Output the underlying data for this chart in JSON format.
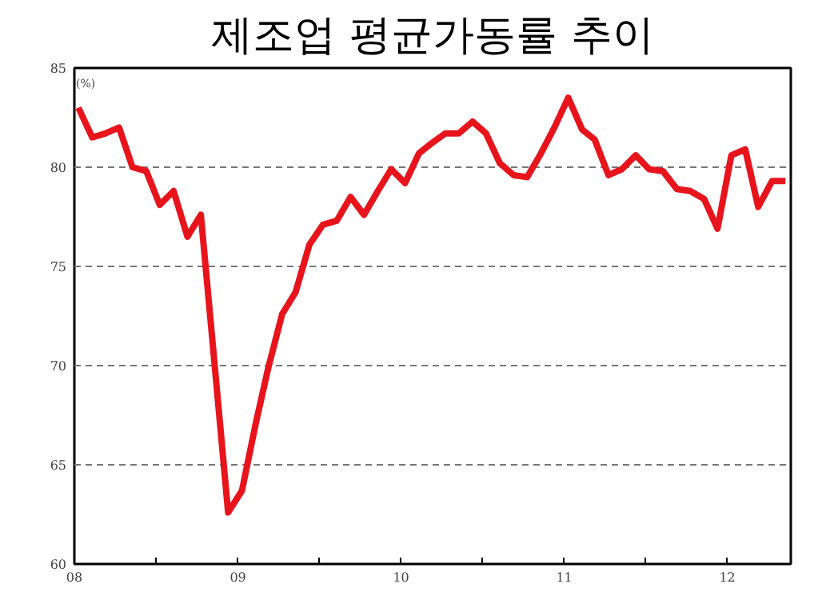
{
  "chart_data": {
    "type": "line",
    "title": "제조업 평균가동률 추이",
    "ylabel": "(%)",
    "x": [
      "2008-01-10",
      "2008-02-10",
      "2008-03-10",
      "2008-04-10",
      "2008-05-10",
      "2008-06-10",
      "2008-07-10",
      "2008-08-10",
      "2008-09-10",
      "2008-10-10",
      "2008-11-10",
      "2008-12-10",
      "2009-01-10",
      "2009-02-10",
      "2009-03-10",
      "2009-04-10",
      "2009-05-10",
      "2009-06-10",
      "2009-07-10",
      "2009-08-10",
      "2009-09-10",
      "2009-10-10",
      "2009-11-10",
      "2009-12-10",
      "2010-01-10",
      "2010-02-10",
      "2010-03-10",
      "2010-04-10",
      "2010-05-10",
      "2010-06-10",
      "2010-07-10",
      "2010-08-10",
      "2010-09-10",
      "2010-10-10",
      "2010-11-10",
      "2010-12-10",
      "2011-01-10",
      "2011-02-10",
      "2011-03-10",
      "2011-04-10",
      "2011-05-10",
      "2011-06-10",
      "2011-07-10",
      "2011-08-10",
      "2011-09-10",
      "2011-10-10",
      "2011-11-10",
      "2011-12-10",
      "2012-01-10",
      "2012-02-10",
      "2012-03-10",
      "2012-04-10",
      "2012-05-10"
    ],
    "series": [
      {
        "color": "#e8141c",
        "values": [
          83.0,
          81.5,
          81.7,
          82.0,
          80.0,
          79.8,
          78.1,
          78.8,
          76.5,
          77.6,
          70.0,
          62.6,
          63.7,
          67.1,
          69.9,
          72.6,
          73.7,
          76.1,
          77.1,
          77.3,
          78.5,
          77.6,
          78.8,
          79.9,
          79.2,
          80.7,
          81.2,
          81.7,
          81.7,
          82.3,
          81.7,
          80.2,
          79.6,
          79.5,
          80.7,
          82.0,
          83.5,
          81.9,
          81.4,
          79.6,
          79.9,
          80.6,
          79.9,
          79.8,
          78.9,
          78.8,
          78.4,
          76.9,
          80.6,
          80.9,
          78.0,
          79.3,
          79.3
        ]
      }
    ],
    "xlim": [
      "2008-01-01",
      "2012-05-22"
    ],
    "xticks": [
      {
        "value": "2008",
        "label": "08"
      },
      {
        "value": "2008-07",
        "label": null
      },
      {
        "value": "2009",
        "label": "09"
      },
      {
        "value": "2009-07",
        "label": null
      },
      {
        "value": "2010",
        "label": "10"
      },
      {
        "value": "2010-07",
        "label": null
      },
      {
        "value": "2011",
        "label": "11"
      },
      {
        "value": "2011-07",
        "label": null
      },
      {
        "value": "2012",
        "label": "12"
      }
    ],
    "ylim": [
      60,
      85
    ],
    "yticks": [
      60,
      65,
      70,
      75,
      80,
      85
    ],
    "grid": "y",
    "line_style": "solid"
  }
}
